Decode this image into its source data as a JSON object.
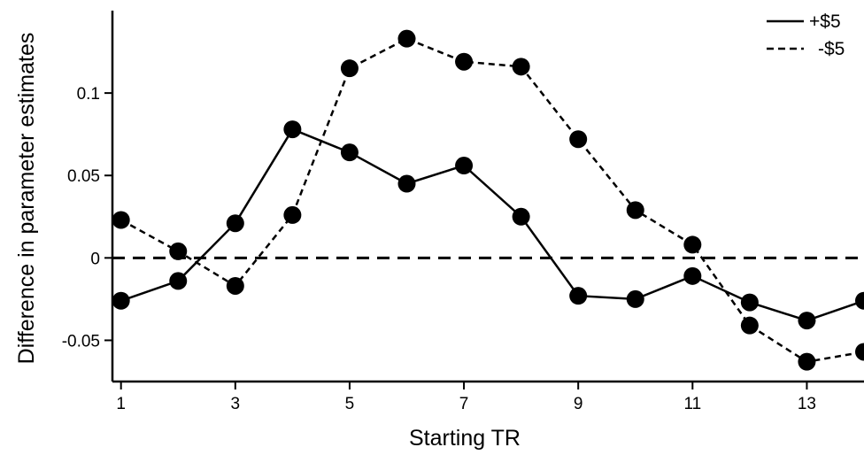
{
  "chart_data": {
    "type": "line",
    "xlabel": "Starting TR",
    "ylabel": "Difference in parameter estimates",
    "x": [
      1,
      2,
      3,
      4,
      5,
      6,
      7,
      8,
      9,
      10,
      11,
      12,
      13,
      14
    ],
    "xticks": [
      1,
      3,
      5,
      7,
      9,
      11,
      13
    ],
    "xlim": [
      0.85,
      14
    ],
    "yticks": [
      -0.05,
      0,
      0.05,
      0.1
    ],
    "ytick_labels": [
      "-0.05",
      "0",
      "0.05",
      "0.1"
    ],
    "ylim": [
      -0.075,
      0.15
    ],
    "reference_line": {
      "y": 0,
      "style": "dashed"
    },
    "grid": false,
    "legend": "top-right",
    "series": [
      {
        "name": "+$5",
        "line_style": "solid",
        "values": [
          -0.026,
          -0.014,
          0.021,
          0.078,
          0.064,
          0.045,
          0.056,
          0.025,
          -0.023,
          -0.025,
          -0.011,
          -0.027,
          -0.038,
          -0.026
        ]
      },
      {
        "name": "-$5",
        "line_style": "dashed",
        "values": [
          0.023,
          0.004,
          -0.017,
          0.026,
          0.115,
          0.133,
          0.119,
          0.116,
          0.072,
          0.029,
          0.008,
          -0.041,
          -0.063,
          -0.057
        ]
      }
    ]
  }
}
